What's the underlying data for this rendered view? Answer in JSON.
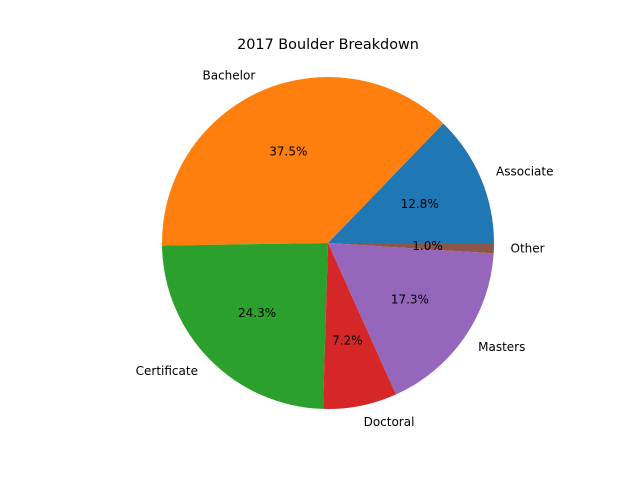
{
  "chart_data": {
    "type": "pie",
    "title": "2017 Boulder Breakdown",
    "start_angle_deg": 0,
    "direction": "counterclockwise",
    "slices": [
      {
        "label": "Associate",
        "value": 12.8,
        "pct_label": "12.8%",
        "color": "#1f77b4"
      },
      {
        "label": "Bachelor",
        "value": 37.5,
        "pct_label": "37.5%",
        "color": "#ff7f0e"
      },
      {
        "label": "Certificate",
        "value": 24.3,
        "pct_label": "24.3%",
        "color": "#2ca02c"
      },
      {
        "label": "Doctoral",
        "value": 7.2,
        "pct_label": "7.2%",
        "color": "#d62728"
      },
      {
        "label": "Masters",
        "value": 17.3,
        "pct_label": "17.3%",
        "color": "#9467bd"
      },
      {
        "label": "Other",
        "value": 1.0,
        "pct_label": "1.0%",
        "color": "#8c564b"
      }
    ]
  }
}
